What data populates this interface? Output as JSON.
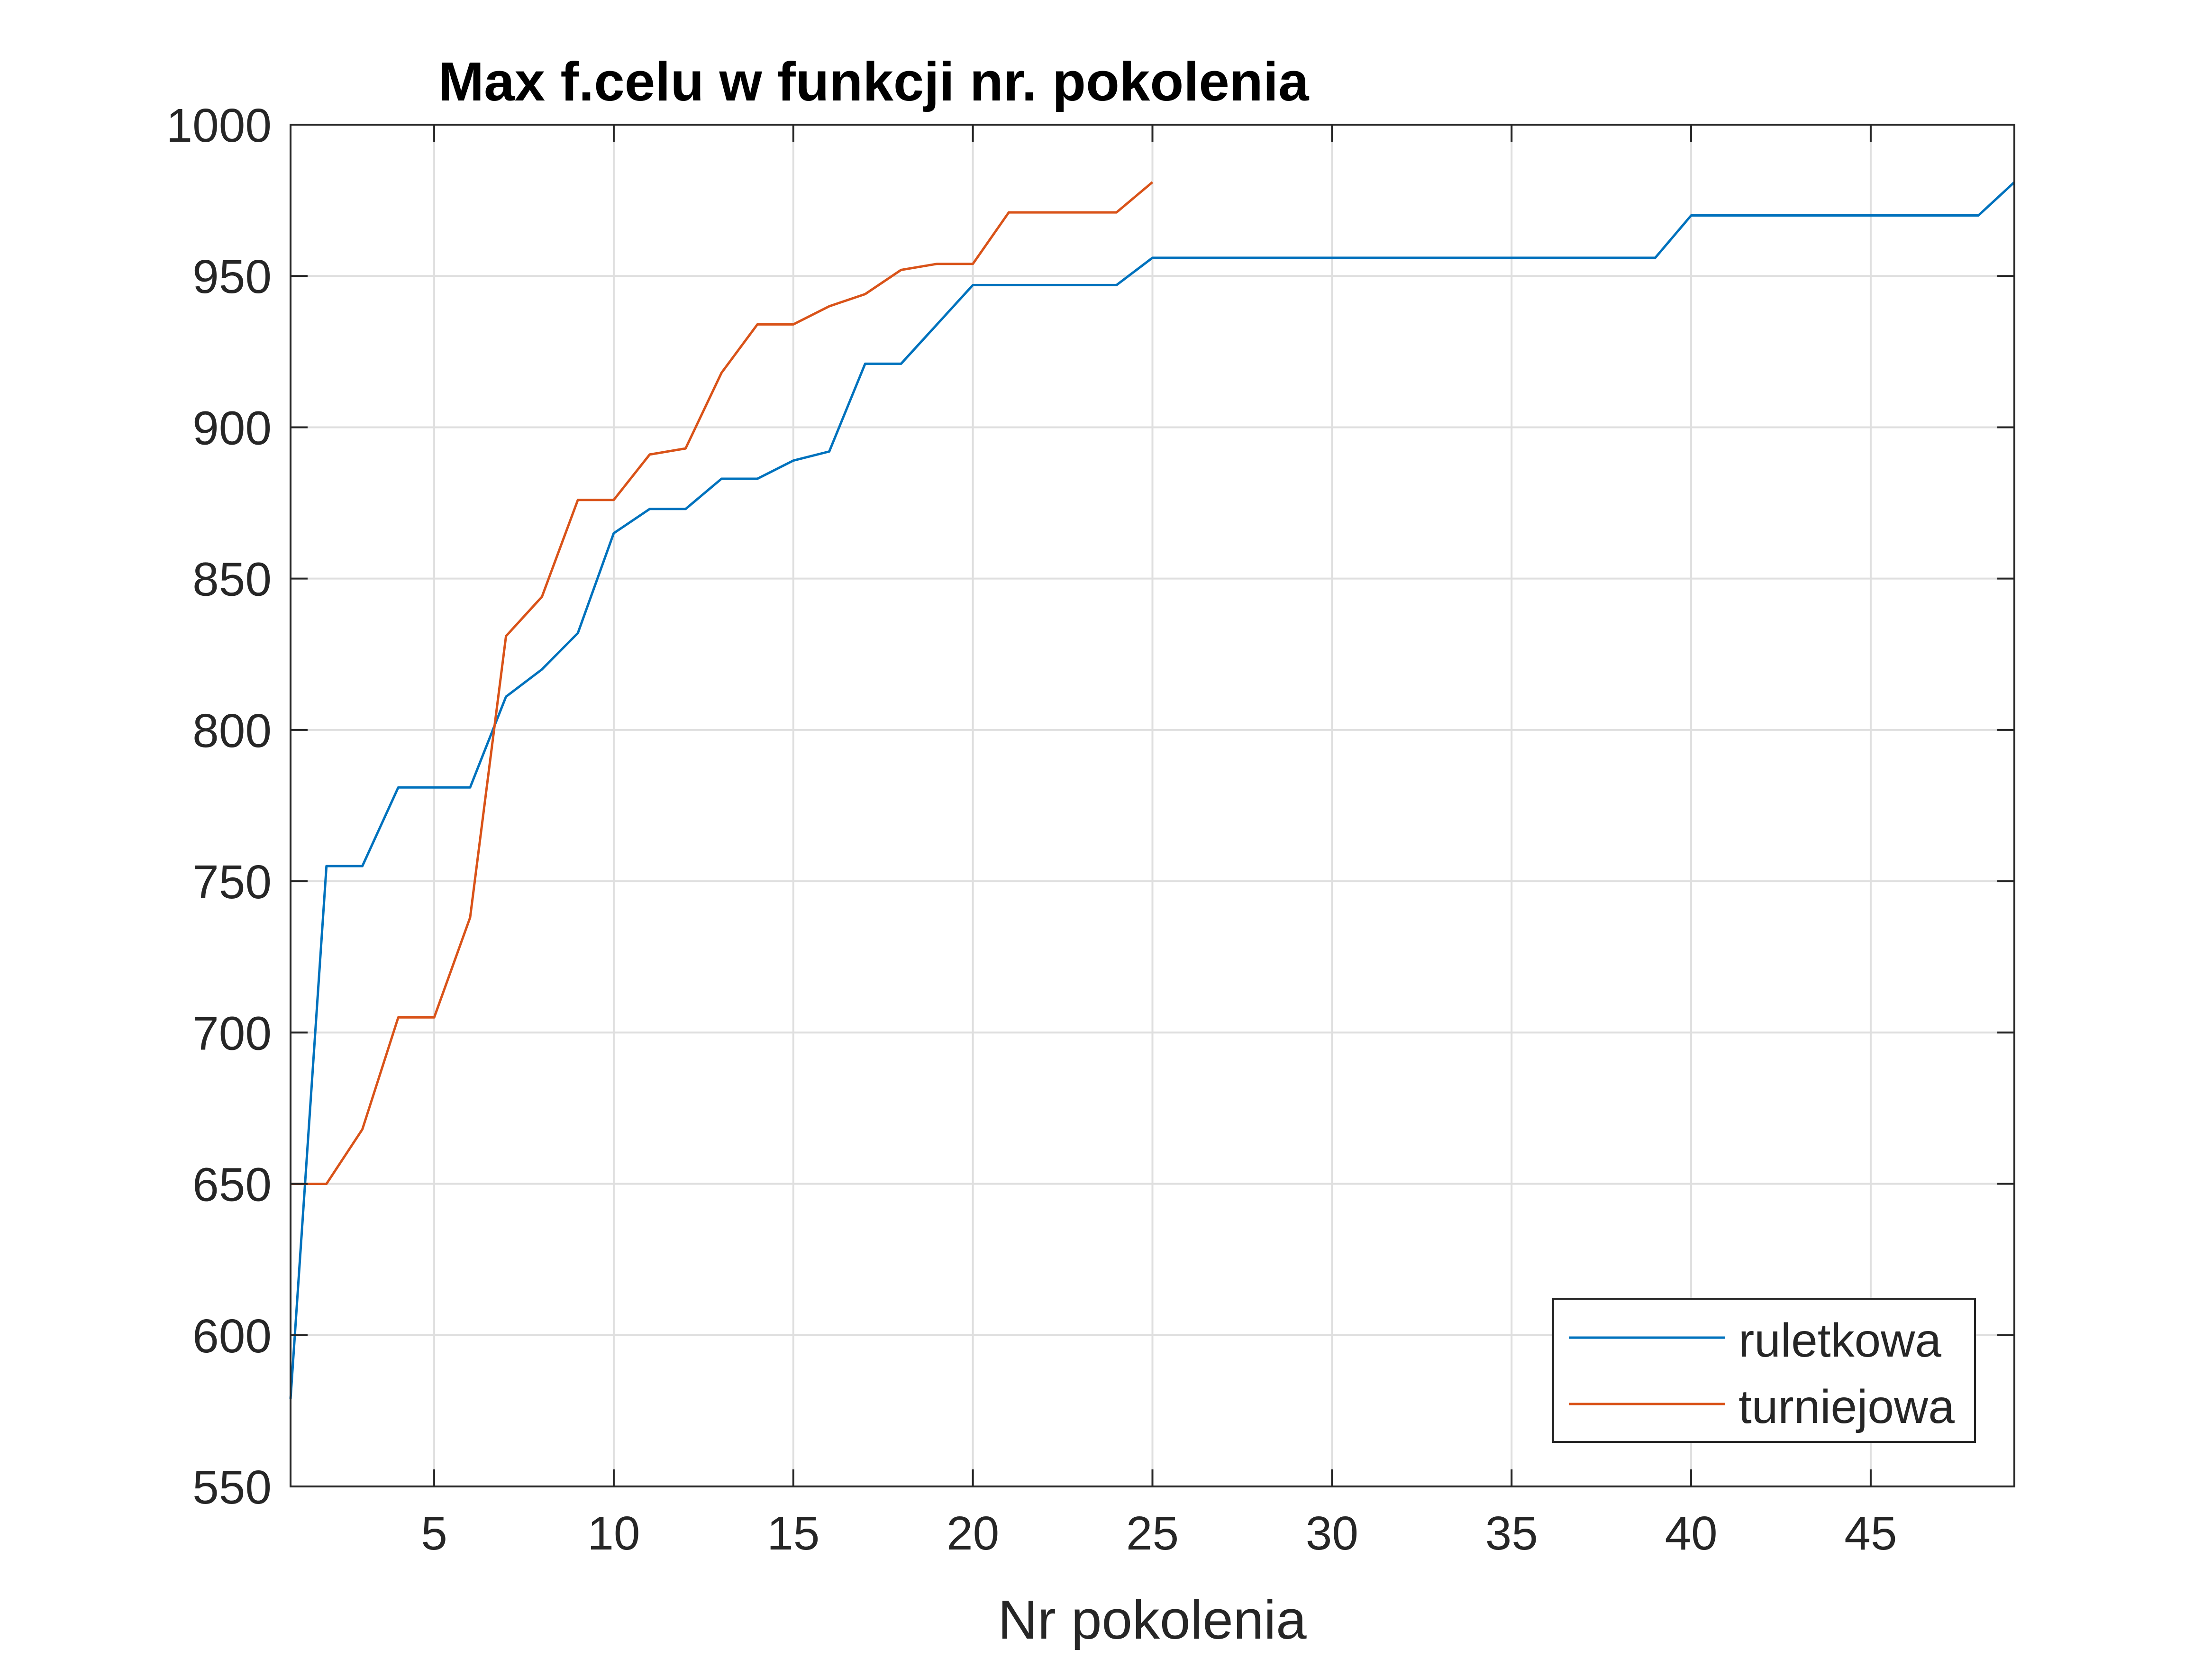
{
  "chart_data": {
    "type": "line",
    "title": "Max f.celu w funkcji nr. pokolenia",
    "xlabel": "Nr pokolenia",
    "ylabel": "",
    "xlim": [
      1,
      49
    ],
    "ylim": [
      550,
      1000
    ],
    "xticks": [
      5,
      10,
      15,
      20,
      25,
      30,
      35,
      40,
      45
    ],
    "yticks": [
      550,
      600,
      650,
      700,
      750,
      800,
      850,
      900,
      950,
      1000
    ],
    "grid": true,
    "legend_position": "bottom-right",
    "series": [
      {
        "name": "ruletkowa",
        "color": "#0072BD",
        "x": [
          1,
          2,
          3,
          4,
          5,
          6,
          7,
          8,
          9,
          10,
          11,
          12,
          13,
          14,
          15,
          16,
          17,
          18,
          19,
          20,
          21,
          22,
          23,
          24,
          25,
          26,
          27,
          28,
          29,
          30,
          31,
          32,
          33,
          34,
          35,
          36,
          37,
          38,
          39,
          40,
          41,
          42,
          43,
          44,
          45,
          46,
          47,
          48,
          49
        ],
        "y": [
          579,
          755,
          755,
          781,
          781,
          781,
          811,
          820,
          832,
          865,
          873,
          873,
          883,
          883,
          889,
          892,
          921,
          921,
          934,
          947,
          947,
          947,
          947,
          947,
          956,
          956,
          956,
          956,
          956,
          956,
          956,
          956,
          956,
          956,
          956,
          956,
          956,
          956,
          956,
          970,
          970,
          970,
          970,
          970,
          970,
          970,
          970,
          970,
          981
        ]
      },
      {
        "name": "turniejowa",
        "color": "#D95319",
        "x": [
          1,
          2,
          3,
          4,
          5,
          6,
          7,
          8,
          9,
          10,
          11,
          12,
          13,
          14,
          15,
          16,
          17,
          18,
          19,
          20,
          21,
          22,
          23,
          24,
          25
        ],
        "y": [
          650,
          650,
          668,
          705,
          705,
          738,
          831,
          844,
          876,
          876,
          891,
          893,
          918,
          934,
          934,
          940,
          944,
          952,
          954,
          954,
          971,
          971,
          971,
          971,
          981
        ]
      }
    ]
  }
}
